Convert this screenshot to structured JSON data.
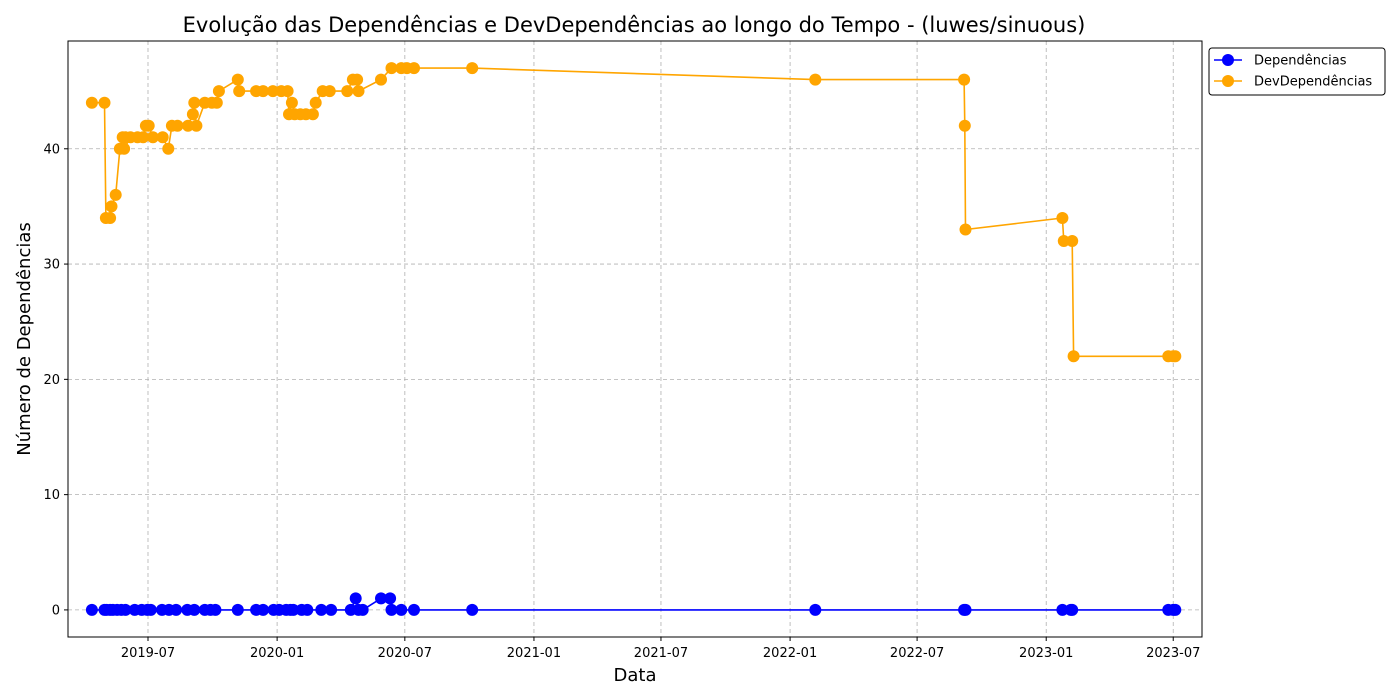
{
  "chart_data": {
    "type": "line",
    "title": "Evolução das Dependências e DevDependências ao longo do Tempo - (luwes/sinuous)",
    "xlabel": "Data",
    "ylabel": "Número de Dependências",
    "x_ticks": [
      "2019-07",
      "2020-01",
      "2020-07",
      "2021-01",
      "2021-07",
      "2022-01",
      "2022-07",
      "2023-01",
      "2023-07"
    ],
    "y_ticks": [
      "0",
      "10",
      "20",
      "30",
      "40"
    ],
    "xlim": [
      "2019-03-09",
      "2023-08-11"
    ],
    "ylim": [
      -2.35,
      49.35
    ],
    "grid": true,
    "legend_position": "top-right-outside",
    "series": [
      {
        "name": "Dependências",
        "color": "#0000ff",
        "marker": "circle",
        "points": [
          [
            "2019-04-12",
            0
          ],
          [
            "2019-04-30",
            0
          ],
          [
            "2019-05-03",
            0
          ],
          [
            "2019-05-08",
            0
          ],
          [
            "2019-05-12",
            0
          ],
          [
            "2019-05-18",
            0
          ],
          [
            "2019-05-24",
            0
          ],
          [
            "2019-05-30",
            0
          ],
          [
            "2019-06-12",
            0
          ],
          [
            "2019-06-22",
            0
          ],
          [
            "2019-06-30",
            0
          ],
          [
            "2019-07-05",
            0
          ],
          [
            "2019-07-21",
            0
          ],
          [
            "2019-07-31",
            0
          ],
          [
            "2019-08-10",
            0
          ],
          [
            "2019-08-26",
            0
          ],
          [
            "2019-09-05",
            0
          ],
          [
            "2019-09-20",
            0
          ],
          [
            "2019-09-28",
            0
          ],
          [
            "2019-10-05",
            0
          ],
          [
            "2019-11-06",
            0
          ],
          [
            "2019-12-02",
            0
          ],
          [
            "2019-12-12",
            0
          ],
          [
            "2019-12-27",
            0
          ],
          [
            "2020-01-04",
            0
          ],
          [
            "2020-01-14",
            0
          ],
          [
            "2020-01-20",
            0
          ],
          [
            "2020-01-24",
            0
          ],
          [
            "2020-02-05",
            0
          ],
          [
            "2020-02-13",
            0
          ],
          [
            "2020-03-04",
            0
          ],
          [
            "2020-03-18",
            0
          ],
          [
            "2020-04-15",
            0
          ],
          [
            "2020-04-22",
            1
          ],
          [
            "2020-04-26",
            0
          ],
          [
            "2020-05-02",
            0
          ],
          [
            "2020-05-28",
            1
          ],
          [
            "2020-06-10",
            1
          ],
          [
            "2020-06-12",
            0
          ],
          [
            "2020-06-26",
            0
          ],
          [
            "2020-07-14",
            0
          ],
          [
            "2020-10-05",
            0
          ],
          [
            "2022-02-06",
            0
          ],
          [
            "2022-09-06",
            0
          ],
          [
            "2022-09-08",
            0
          ],
          [
            "2023-01-24",
            0
          ],
          [
            "2023-02-05",
            0
          ],
          [
            "2023-02-07",
            0
          ],
          [
            "2023-06-24",
            0
          ],
          [
            "2023-07-01",
            0
          ],
          [
            "2023-07-04",
            0
          ]
        ]
      },
      {
        "name": "DevDependências",
        "color": "#ffa500",
        "marker": "circle",
        "points": [
          [
            "2019-04-12",
            44
          ],
          [
            "2019-04-30",
            44
          ],
          [
            "2019-05-02",
            34
          ],
          [
            "2019-05-08",
            34
          ],
          [
            "2019-05-10",
            35
          ],
          [
            "2019-05-16",
            36
          ],
          [
            "2019-05-22",
            40
          ],
          [
            "2019-05-26",
            41
          ],
          [
            "2019-05-30",
            41
          ],
          [
            "2019-05-28",
            40
          ],
          [
            "2019-06-06",
            41
          ],
          [
            "2019-06-16",
            41
          ],
          [
            "2019-06-24",
            41
          ],
          [
            "2019-06-28",
            42
          ],
          [
            "2019-07-02",
            42
          ],
          [
            "2019-07-08",
            41
          ],
          [
            "2019-07-22",
            41
          ],
          [
            "2019-07-30",
            40
          ],
          [
            "2019-08-04",
            42
          ],
          [
            "2019-08-12",
            42
          ],
          [
            "2019-08-27",
            42
          ],
          [
            "2019-09-03",
            43
          ],
          [
            "2019-09-05",
            44
          ],
          [
            "2019-09-08",
            42
          ],
          [
            "2019-09-20",
            44
          ],
          [
            "2019-09-30",
            44
          ],
          [
            "2019-10-07",
            44
          ],
          [
            "2019-10-10",
            45
          ],
          [
            "2019-11-06",
            46
          ],
          [
            "2019-11-08",
            45
          ],
          [
            "2019-12-02",
            45
          ],
          [
            "2019-12-12",
            45
          ],
          [
            "2019-12-26",
            45
          ],
          [
            "2020-01-07",
            45
          ],
          [
            "2020-01-16",
            45
          ],
          [
            "2020-01-18",
            43
          ],
          [
            "2020-01-22",
            44
          ],
          [
            "2020-01-26",
            43
          ],
          [
            "2020-02-03",
            43
          ],
          [
            "2020-02-11",
            43
          ],
          [
            "2020-02-21",
            43
          ],
          [
            "2020-02-25",
            44
          ],
          [
            "2020-03-06",
            45
          ],
          [
            "2020-03-16",
            45
          ],
          [
            "2020-04-10",
            45
          ],
          [
            "2020-04-18",
            46
          ],
          [
            "2020-04-24",
            46
          ],
          [
            "2020-04-26",
            45
          ],
          [
            "2020-05-28",
            46
          ],
          [
            "2020-06-12",
            47
          ],
          [
            "2020-06-26",
            47
          ],
          [
            "2020-07-04",
            47
          ],
          [
            "2020-07-14",
            47
          ],
          [
            "2020-10-05",
            47
          ],
          [
            "2022-02-06",
            46
          ],
          [
            "2022-09-06",
            46
          ],
          [
            "2022-09-07",
            42
          ],
          [
            "2022-09-08",
            33
          ],
          [
            "2023-01-24",
            34
          ],
          [
            "2023-01-26",
            32
          ],
          [
            "2023-02-07",
            32
          ],
          [
            "2023-02-09",
            22
          ],
          [
            "2023-06-24",
            22
          ],
          [
            "2023-07-01",
            22
          ],
          [
            "2023-07-04",
            22
          ]
        ]
      }
    ]
  }
}
